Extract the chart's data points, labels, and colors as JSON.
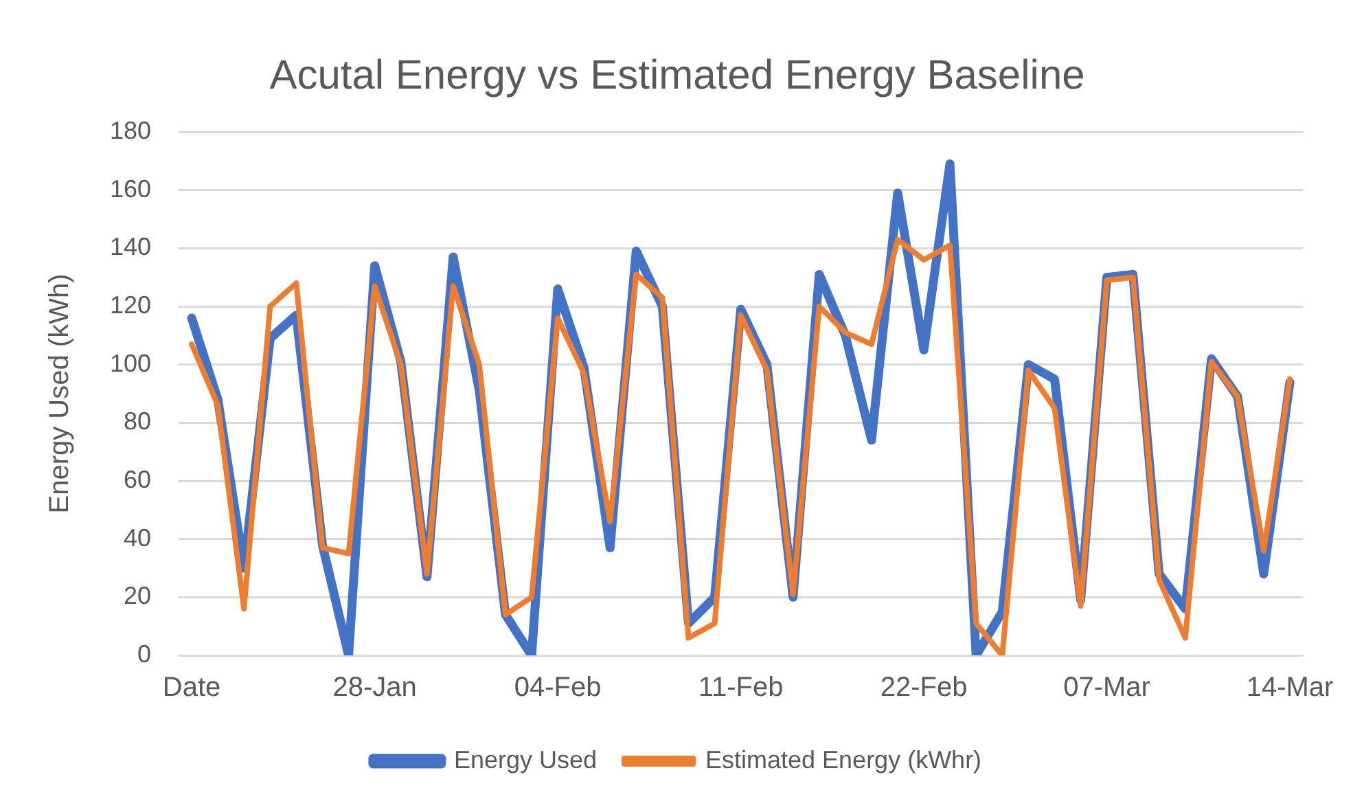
{
  "chart_data": {
    "type": "line",
    "title": "Acutal Energy vs Estimated Energy Baseline",
    "ylabel": "Energy Used (kWh)",
    "categories": [
      "Date",
      null,
      null,
      null,
      null,
      null,
      null,
      "28-Jan",
      null,
      null,
      null,
      null,
      null,
      null,
      "04-Feb",
      null,
      null,
      null,
      null,
      null,
      null,
      "11-Feb",
      null,
      null,
      null,
      null,
      null,
      null,
      "22-Feb",
      null,
      null,
      null,
      null,
      null,
      null,
      "07-Mar",
      null,
      null,
      null,
      null,
      null,
      null,
      "14-Mar"
    ],
    "series": [
      {
        "name": "Energy Used",
        "color": "#4472c4",
        "values": [
          116,
          88,
          30,
          109,
          117,
          38,
          0,
          134,
          101,
          27,
          137,
          91,
          14,
          0,
          126,
          99,
          37,
          139,
          120,
          11,
          20,
          119,
          100,
          20,
          131,
          110,
          74,
          159,
          105,
          169,
          0,
          15,
          100,
          95,
          19,
          130,
          131,
          28,
          16,
          102,
          89,
          28,
          94
        ]
      },
      {
        "name": "Estimated Energy (kWhr)",
        "color": "#ed7d31",
        "values": [
          107,
          86,
          16,
          120,
          128,
          37,
          35,
          127,
          100,
          28,
          127,
          100,
          14,
          20,
          116,
          97,
          46,
          131,
          123,
          6,
          11,
          117,
          98,
          21,
          120,
          111,
          107,
          143,
          136,
          141,
          11,
          0,
          98,
          85,
          17,
          129,
          130,
          26,
          6,
          101,
          89,
          36,
          95
        ]
      }
    ],
    "ylim": [
      0,
      180
    ],
    "yticks": [
      0,
      20,
      40,
      60,
      80,
      100,
      120,
      140,
      160,
      180
    ],
    "grid": "y",
    "legend": "bottom",
    "marker": "none",
    "line_style": "solid"
  }
}
